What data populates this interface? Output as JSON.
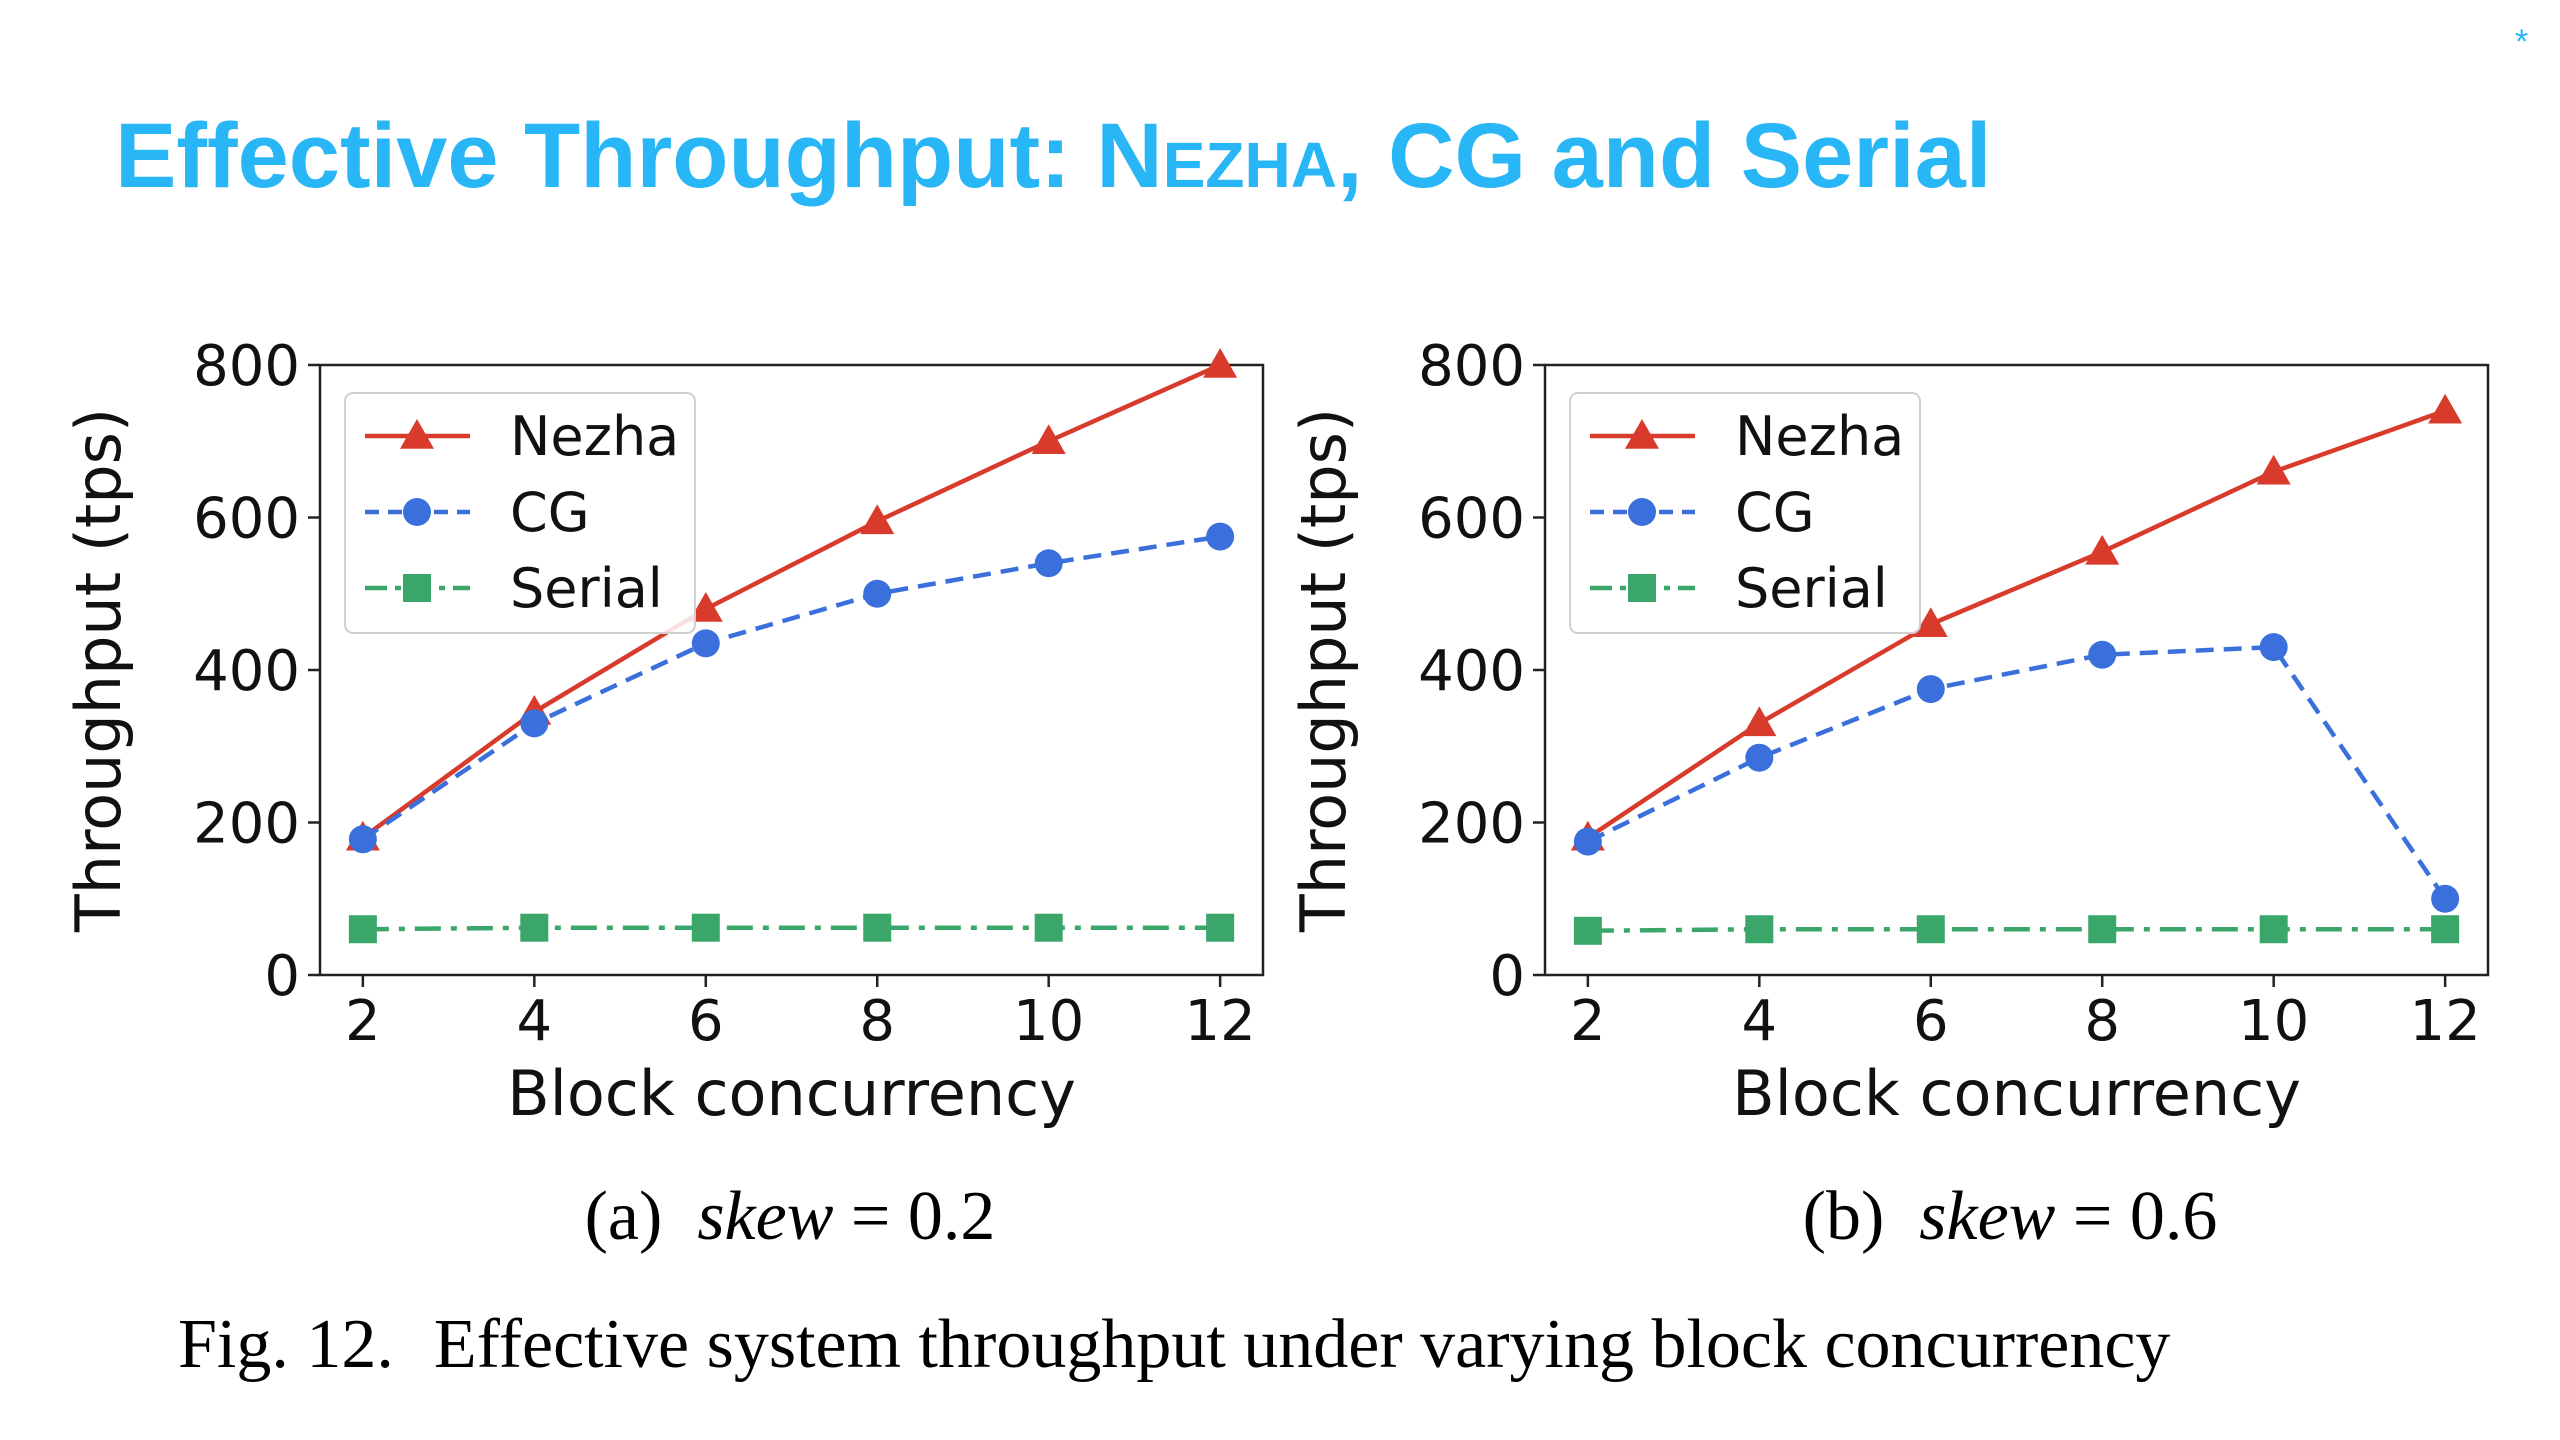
{
  "slide": {
    "title_main": "Effective Throughput: ",
    "title_sc": "Nezha",
    "title_rest": ", CG and Serial",
    "title_color": "#29b6f6",
    "corner_mark": "*"
  },
  "figure": {
    "fig_label": "Fig. 12.",
    "caption": "Effective system throughput under varying block concurrency"
  },
  "chart_data": [
    {
      "type": "line",
      "subcaption": {
        "label": "(a)",
        "variable": "skew",
        "equals": "= 0.2"
      },
      "xlabel": "Block concurrency",
      "ylabel": "Throughput (tps)",
      "x": [
        2,
        4,
        6,
        8,
        10,
        12
      ],
      "xlim": [
        1.5,
        12.5
      ],
      "ylim": [
        0,
        800
      ],
      "yticks": [
        0,
        200,
        400,
        600,
        800
      ],
      "grid": false,
      "legend_position": "top-left",
      "series": [
        {
          "name": "Nezha",
          "values": [
            180,
            345,
            480,
            595,
            700,
            800
          ],
          "color": "#d83b2b",
          "marker": "triangle",
          "line": "solid"
        },
        {
          "name": "CG",
          "values": [
            178,
            330,
            435,
            500,
            540,
            575
          ],
          "color": "#3a6fdc",
          "marker": "circle",
          "line": "dashed"
        },
        {
          "name": "Serial",
          "values": [
            60,
            62,
            62,
            62,
            62,
            62
          ],
          "color": "#3aa66a",
          "marker": "square",
          "line": "dashdot"
        }
      ]
    },
    {
      "type": "line",
      "subcaption": {
        "label": "(b)",
        "variable": "skew",
        "equals": "= 0.6"
      },
      "xlabel": "Block concurrency",
      "ylabel": "Throughput (tps)",
      "x": [
        2,
        4,
        6,
        8,
        10,
        12
      ],
      "xlim": [
        1.5,
        12.5
      ],
      "ylim": [
        0,
        800
      ],
      "yticks": [
        0,
        200,
        400,
        600,
        800
      ],
      "grid": false,
      "legend_position": "top-left",
      "series": [
        {
          "name": "Nezha",
          "values": [
            180,
            330,
            460,
            555,
            660,
            740
          ],
          "color": "#d83b2b",
          "marker": "triangle",
          "line": "solid"
        },
        {
          "name": "CG",
          "values": [
            175,
            285,
            375,
            420,
            430,
            100
          ],
          "color": "#3a6fdc",
          "marker": "circle",
          "line": "dashed"
        },
        {
          "name": "Serial",
          "values": [
            58,
            60,
            60,
            60,
            60,
            60
          ],
          "color": "#3aa66a",
          "marker": "square",
          "line": "dashdot"
        }
      ]
    }
  ]
}
